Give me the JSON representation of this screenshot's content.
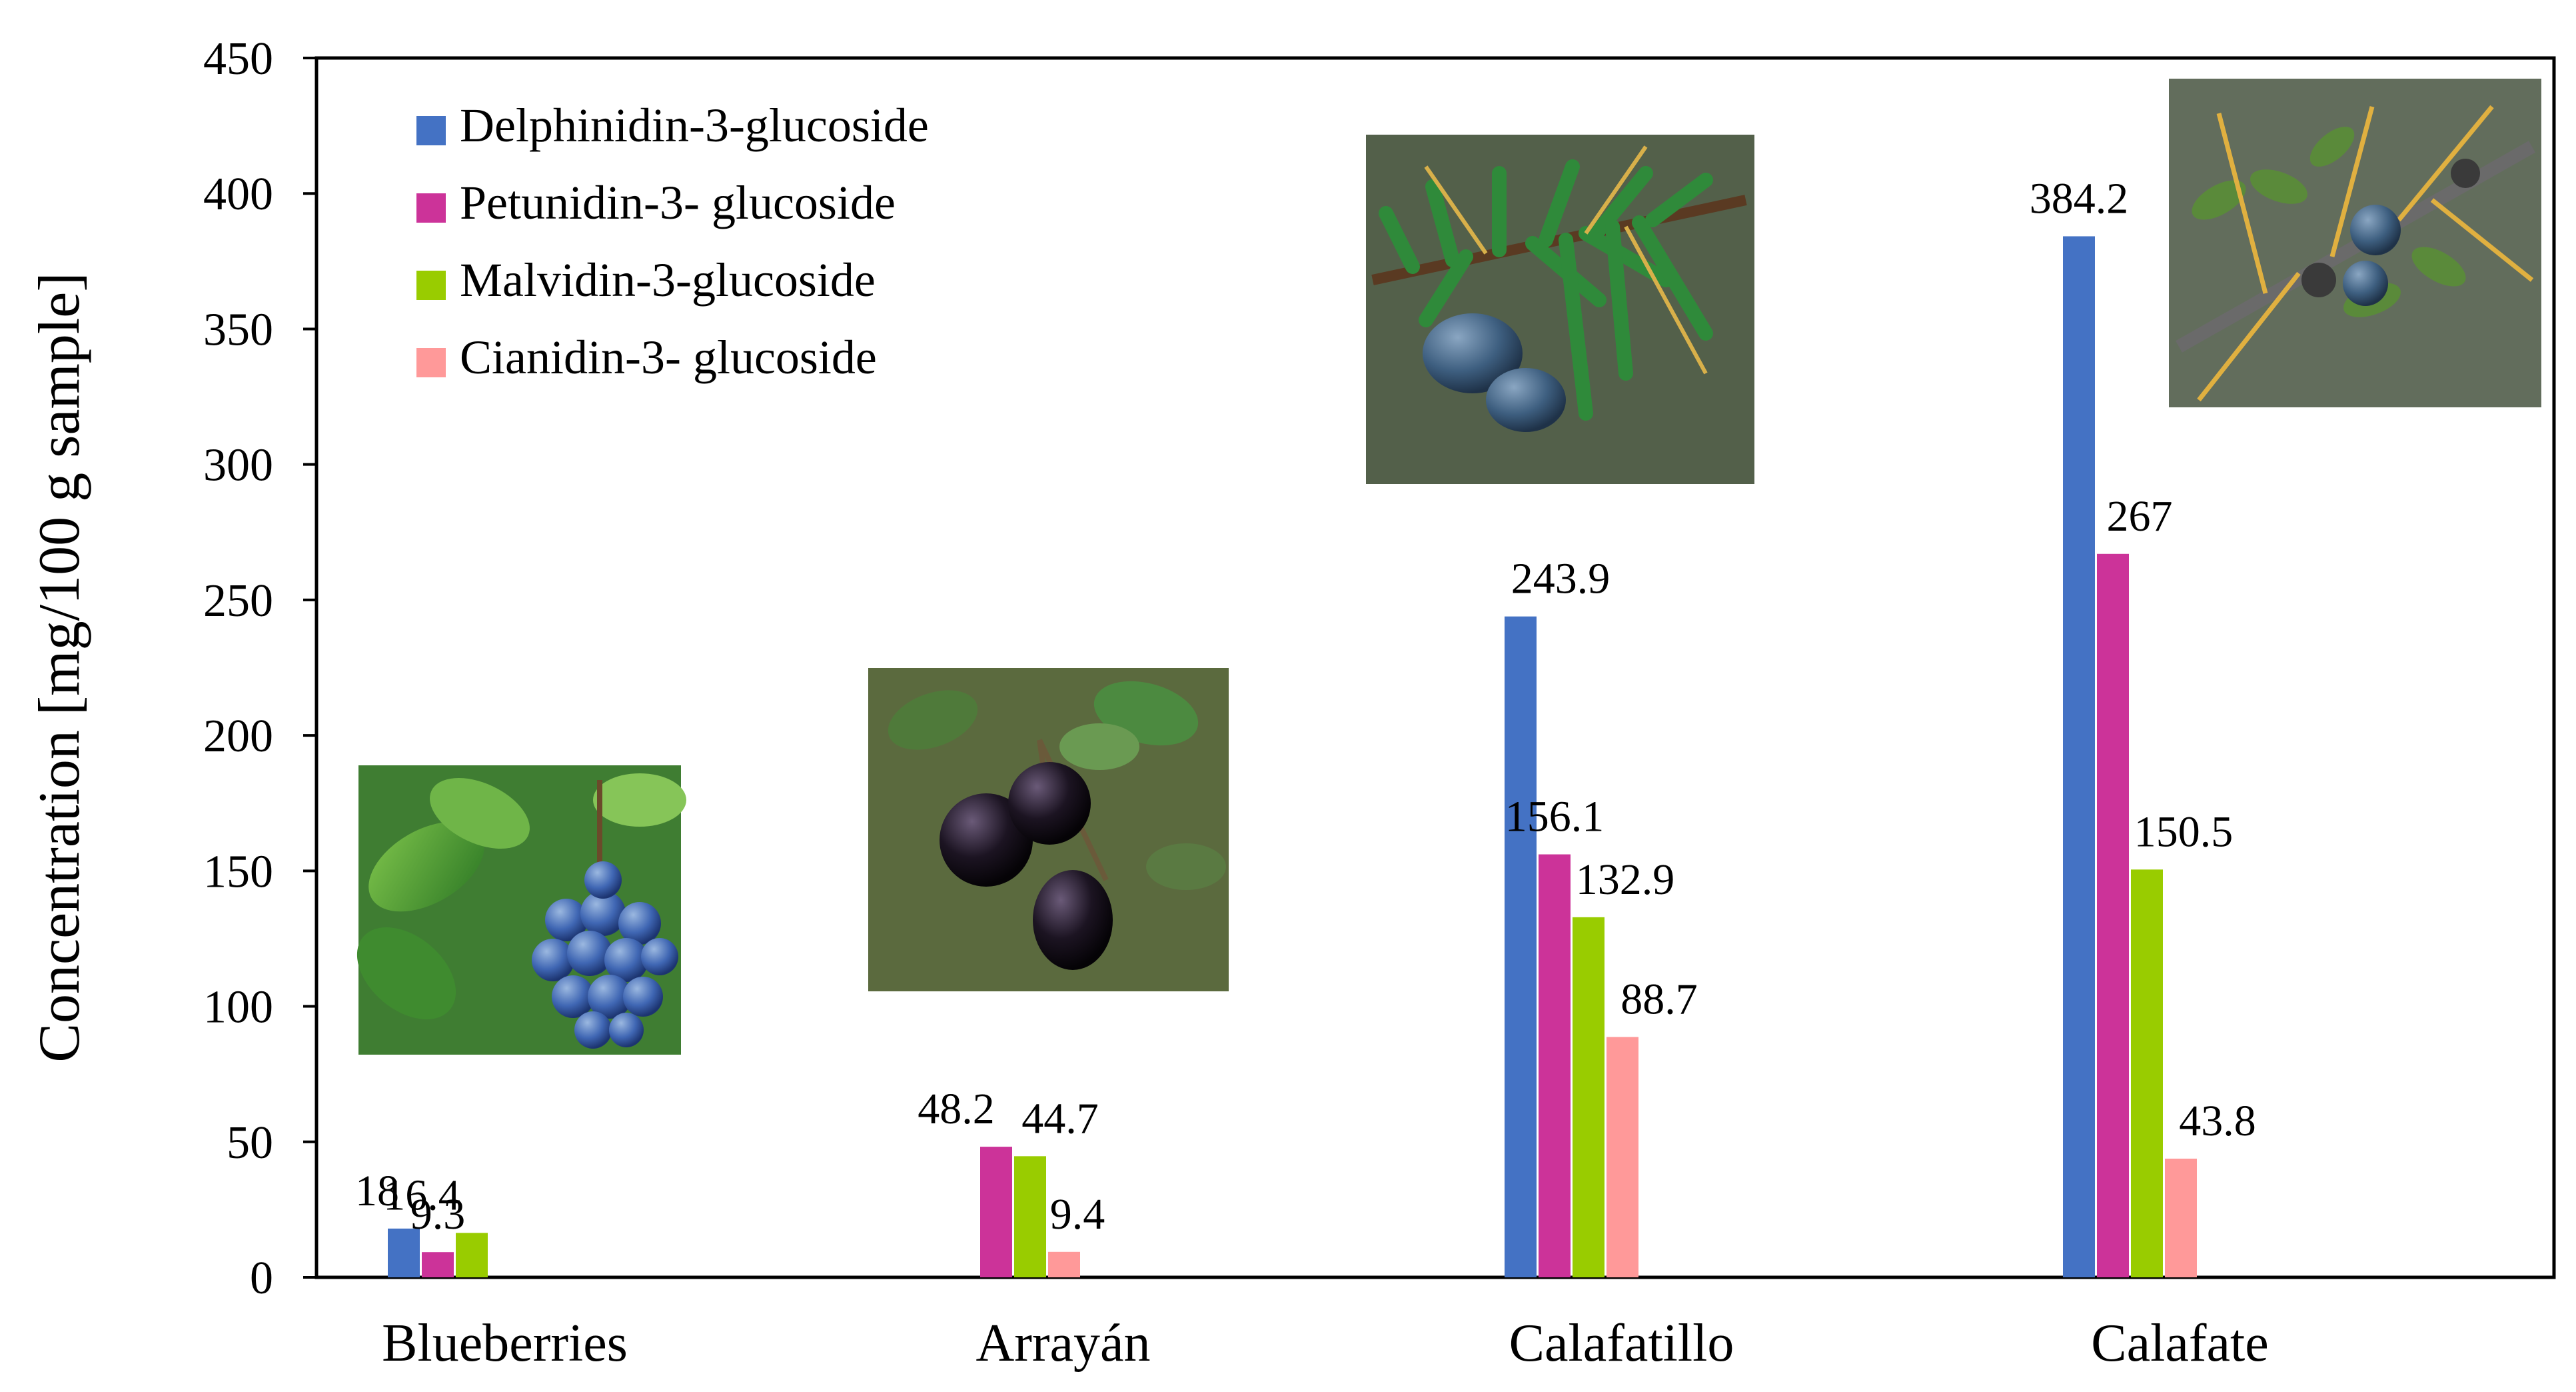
{
  "chart_data": {
    "type": "bar",
    "ylabel": "Concentration [mg/100 g sample]",
    "xlabel": "",
    "ylim": [
      0,
      450
    ],
    "yticks": [
      0,
      50,
      100,
      150,
      200,
      250,
      300,
      350,
      400,
      450
    ],
    "grid": false,
    "legend_position": "top-left",
    "categories": [
      "Blueberries",
      "Arrayán",
      "Calafatillo",
      "Calafate"
    ],
    "series": [
      {
        "name": "Delphinidin-3-glucoside",
        "color": "#4472C4",
        "values": [
          18,
          null,
          243.9,
          384.2
        ],
        "labels": [
          "18",
          "",
          "243.9",
          "384.2"
        ]
      },
      {
        "name": "Petunidin-3- glucoside",
        "color": "#CC3399",
        "values": [
          9.3,
          48.2,
          156.1,
          267
        ],
        "labels": [
          "9.3",
          "48.2",
          "156.1",
          "267"
        ]
      },
      {
        "name": "Malvidin-3-glucoside",
        "color": "#99CC00",
        "values": [
          16.4,
          44.7,
          132.9,
          150.5
        ],
        "labels": [
          "16.4",
          "44.7",
          "132.9",
          "150.5"
        ]
      },
      {
        "name": "Cianidin-3- glucoside",
        "color": "#FF9999",
        "values": [
          null,
          9.4,
          88.7,
          43.8
        ],
        "labels": [
          "",
          "9.4",
          "88.7",
          "43.8"
        ]
      }
    ],
    "photos": [
      {
        "category": "Blueberries",
        "icon": "blueberry-photo"
      },
      {
        "category": "Arrayán",
        "icon": "arrayan-photo"
      },
      {
        "category": "Calafatillo",
        "icon": "calafatillo-photo"
      },
      {
        "category": "Calafate",
        "icon": "calafate-photo"
      }
    ]
  }
}
